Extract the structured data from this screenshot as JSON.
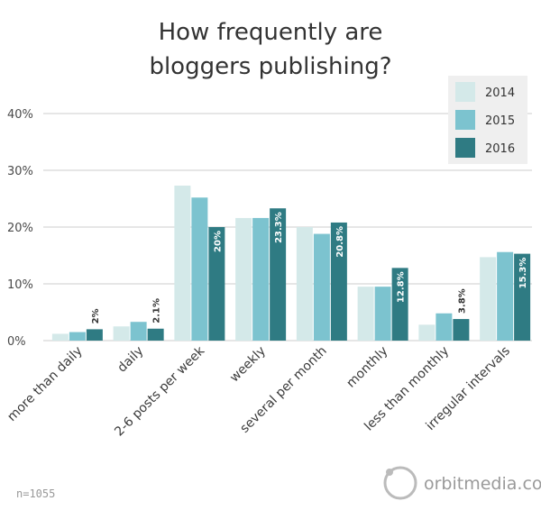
{
  "chart_data": {
    "type": "bar",
    "title": [
      "How frequently are",
      "bloggers publishing?"
    ],
    "categories": [
      "more than daily",
      "daily",
      "2-6 posts per week",
      "weekly",
      "several per month",
      "monthly",
      "less than monthly",
      "irregular intervals"
    ],
    "series": [
      {
        "name": "2014",
        "color": "#d4e9e9",
        "values": [
          1.2,
          2.5,
          27.3,
          21.6,
          20.0,
          9.5,
          2.8,
          14.7
        ],
        "labels": [
          "",
          "",
          "",
          "",
          "",
          "",
          "",
          ""
        ]
      },
      {
        "name": "2015",
        "color": "#7cc3cf",
        "values": [
          1.5,
          3.3,
          25.2,
          21.6,
          18.8,
          9.5,
          4.8,
          15.6
        ],
        "labels": [
          "",
          "",
          "",
          "",
          "",
          "",
          "",
          ""
        ]
      },
      {
        "name": "2016",
        "color": "#2f7b83",
        "values": [
          2.0,
          2.1,
          20.0,
          23.3,
          20.8,
          12.8,
          3.8,
          15.3
        ],
        "labels": [
          "2%",
          "2.1%",
          "20%",
          "23.3%",
          "20.8%",
          "12.8%",
          "3.8%",
          "15.3%"
        ]
      }
    ],
    "y_ticks": [
      "0%",
      "10%",
      "20%",
      "30%",
      "40%"
    ],
    "ylim": [
      0,
      40
    ],
    "grid": true,
    "legend_position": "top-right",
    "note": "n=1055",
    "brand": "orbitmedia.com"
  }
}
